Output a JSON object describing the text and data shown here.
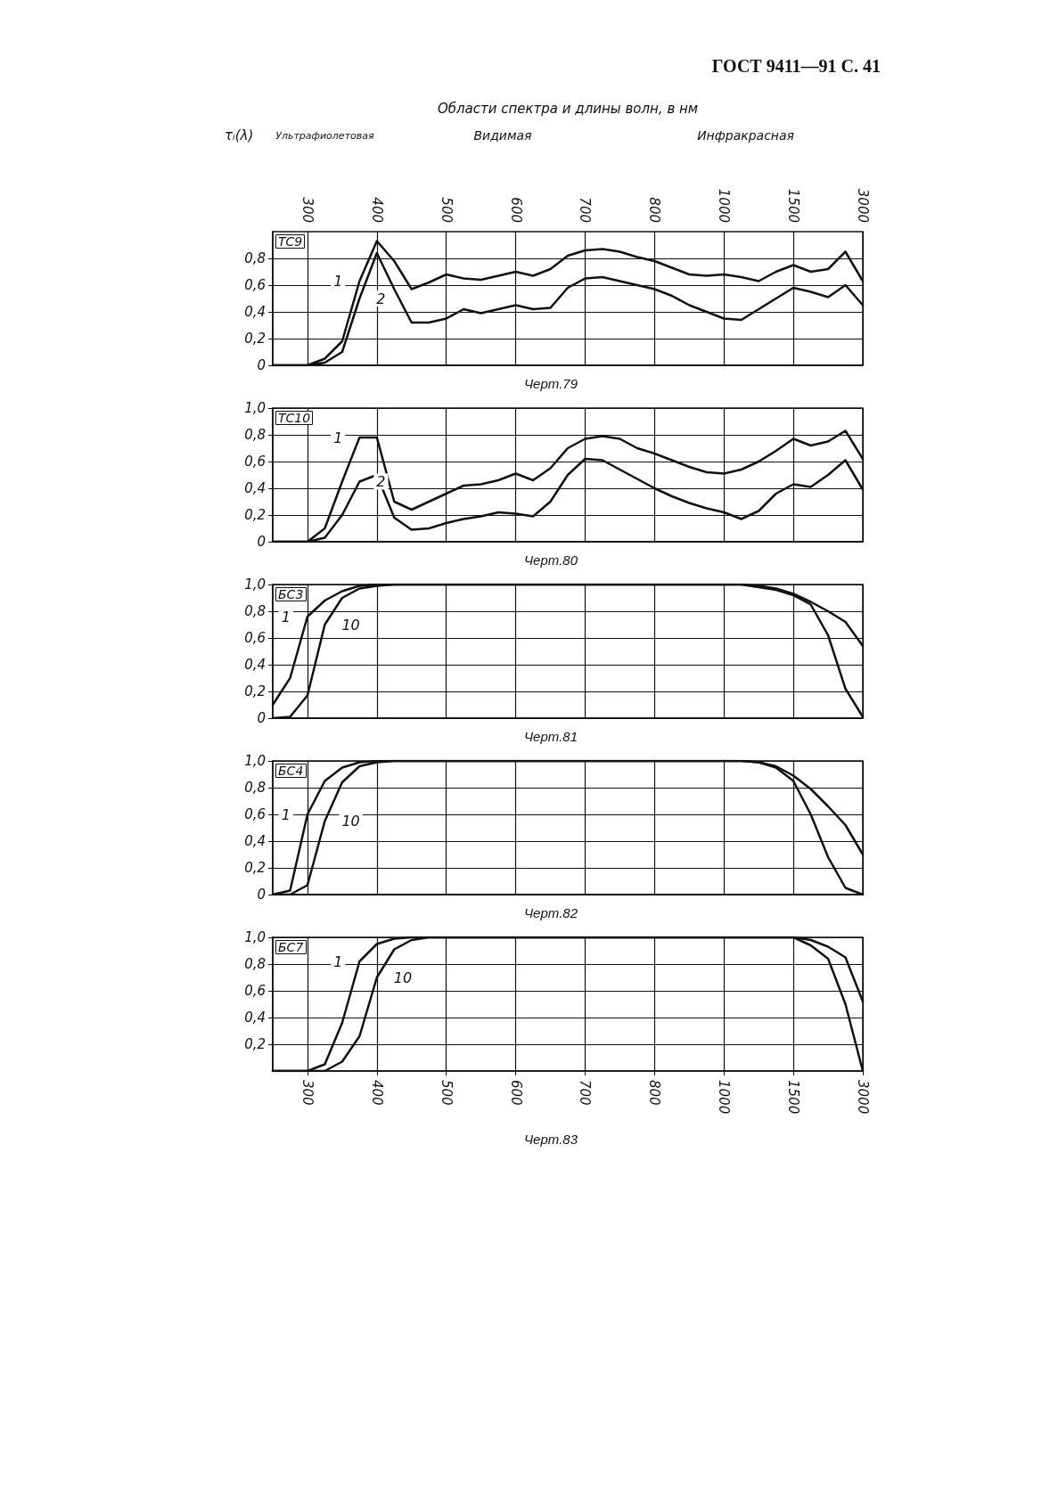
{
  "chart_data": [
    {
      "type": "line",
      "title": "ТС9",
      "ylabel": "τᵢ(λ)",
      "annotations": [
        "ГОСТ 9411—91 С. 41",
        "Области спектра и длины волн, в нм",
        "Ультрафиолетовая",
        "Видимая",
        "Инфракрасная",
        "Черт.79"
      ],
      "categories": [
        null,
        null,
        "300",
        null,
        null,
        null,
        "400",
        null,
        null,
        null,
        "500",
        null,
        null,
        null,
        "600",
        null,
        null,
        null,
        "700",
        null,
        null,
        null,
        "800",
        null,
        null,
        null,
        "1000",
        null,
        null,
        null,
        "1500",
        null,
        null,
        null,
        "3000"
      ],
      "series": [
        {
          "name": "1",
          "color": "#111111",
          "values": [
            0,
            0,
            0,
            0.05,
            0.18,
            0.63,
            0.93,
            0.78,
            0.57,
            0.62,
            0.68,
            0.65,
            0.64,
            0.67,
            0.7,
            0.67,
            0.72,
            0.82,
            0.86,
            0.87,
            0.85,
            0.81,
            0.78,
            0.73,
            0.68,
            0.67,
            0.68,
            0.66,
            0.63,
            0.7,
            0.75,
            0.7,
            0.72,
            0.85,
            0.63
          ]
        },
        {
          "name": "2",
          "color": "#111111",
          "values": [
            0,
            0,
            0,
            0.02,
            0.1,
            0.5,
            0.84,
            0.57,
            0.32,
            0.32,
            0.35,
            0.42,
            0.39,
            0.42,
            0.45,
            0.42,
            0.43,
            0.58,
            0.65,
            0.66,
            0.63,
            0.6,
            0.57,
            0.52,
            0.45,
            0.4,
            0.35,
            0.34,
            0.42,
            0.5,
            0.58,
            0.55,
            0.51,
            0.6,
            0.45
          ]
        }
      ],
      "ylim": [
        0,
        1
      ],
      "yticks": [
        {
          "value": 0,
          "label": "0"
        },
        {
          "value": 0.2,
          "label": "0,2"
        },
        {
          "value": 0.4,
          "label": "0,4"
        },
        {
          "value": 0.6,
          "label": "0,6"
        },
        {
          "value": 0.8,
          "label": "0,8"
        }
      ],
      "grid": true,
      "marker": "none",
      "line_style": "solid"
    },
    {
      "type": "line",
      "title": "ТС10",
      "annotations": [
        "Черт.80"
      ],
      "tick_labels": "y",
      "categories": [
        null,
        null,
        "300",
        null,
        null,
        null,
        "400",
        null,
        null,
        null,
        "500",
        null,
        null,
        null,
        "600",
        null,
        null,
        null,
        "700",
        null,
        null,
        null,
        "800",
        null,
        null,
        null,
        "1000",
        null,
        null,
        null,
        "1500",
        null,
        null,
        null,
        "3000"
      ],
      "series": [
        {
          "name": "1",
          "color": "#111111",
          "values": [
            0,
            0,
            0,
            0.1,
            0.45,
            0.78,
            0.78,
            0.3,
            0.24,
            0.3,
            0.36,
            0.42,
            0.43,
            0.46,
            0.51,
            0.46,
            0.55,
            0.7,
            0.77,
            0.79,
            0.77,
            0.7,
            0.66,
            0.61,
            0.56,
            0.52,
            0.51,
            0.54,
            0.6,
            0.68,
            0.77,
            0.72,
            0.75,
            0.83,
            0.62
          ]
        },
        {
          "name": "2",
          "color": "#111111",
          "values": [
            0,
            0,
            0,
            0.03,
            0.2,
            0.45,
            0.5,
            0.18,
            0.09,
            0.1,
            0.14,
            0.17,
            0.19,
            0.22,
            0.21,
            0.19,
            0.3,
            0.5,
            0.62,
            0.61,
            0.54,
            0.47,
            0.4,
            0.34,
            0.29,
            0.25,
            0.22,
            0.17,
            0.23,
            0.36,
            0.43,
            0.41,
            0.5,
            0.61,
            0.39
          ]
        }
      ],
      "ylim": [
        0,
        1
      ],
      "yticks": [
        {
          "value": 0,
          "label": "0"
        },
        {
          "value": 0.2,
          "label": "0,2"
        },
        {
          "value": 0.4,
          "label": "0,4"
        },
        {
          "value": 0.6,
          "label": "0,6"
        },
        {
          "value": 0.8,
          "label": "0,8"
        },
        {
          "value": 1,
          "label": "1,0"
        }
      ],
      "grid": true,
      "marker": "none",
      "line_style": "solid"
    },
    {
      "type": "line",
      "title": "БС3",
      "annotations": [
        "Черт.81"
      ],
      "tick_labels": "y",
      "categories": [
        null,
        null,
        "300",
        null,
        null,
        null,
        "400",
        null,
        null,
        null,
        "500",
        null,
        null,
        null,
        "600",
        null,
        null,
        null,
        "700",
        null,
        null,
        null,
        "800",
        null,
        null,
        null,
        "1000",
        null,
        null,
        null,
        "1500",
        null,
        null,
        null,
        "3000"
      ],
      "series": [
        {
          "name": "1",
          "color": "#111111",
          "values": [
            0.1,
            0.3,
            0.76,
            0.88,
            0.95,
            0.99,
            1,
            1,
            1,
            1,
            1,
            1,
            1,
            1,
            1,
            1,
            1,
            1,
            1,
            1,
            1,
            1,
            1,
            1,
            1,
            1,
            1,
            1,
            0.99,
            0.97,
            0.93,
            0.87,
            0.8,
            0.72,
            0.54
          ]
        },
        {
          "name": "10",
          "color": "#111111",
          "values": [
            0,
            0.01,
            0.17,
            0.7,
            0.9,
            0.97,
            0.99,
            1,
            1,
            1,
            1,
            1,
            1,
            1,
            1,
            1,
            1,
            1,
            1,
            1,
            1,
            1,
            1,
            1,
            1,
            1,
            1,
            1,
            0.98,
            0.96,
            0.92,
            0.85,
            0.62,
            0.22,
            0.01
          ]
        }
      ],
      "ylim": [
        0,
        1
      ],
      "yticks": [
        {
          "value": 0,
          "label": "0"
        },
        {
          "value": 0.2,
          "label": "0,2"
        },
        {
          "value": 0.4,
          "label": "0,4"
        },
        {
          "value": 0.6,
          "label": "0,6"
        },
        {
          "value": 0.8,
          "label": "0,8"
        },
        {
          "value": 1,
          "label": "1,0"
        }
      ],
      "grid": true,
      "marker": "none",
      "line_style": "solid"
    },
    {
      "type": "line",
      "title": "БС4",
      "annotations": [
        "Черт.82"
      ],
      "tick_labels": "y",
      "categories": [
        null,
        null,
        "300",
        null,
        null,
        null,
        "400",
        null,
        null,
        null,
        "500",
        null,
        null,
        null,
        "600",
        null,
        null,
        null,
        "700",
        null,
        null,
        null,
        "800",
        null,
        null,
        null,
        "1000",
        null,
        null,
        null,
        "1500",
        null,
        null,
        null,
        "3000"
      ],
      "series": [
        {
          "name": "1",
          "color": "#111111",
          "values": [
            0,
            0.03,
            0.6,
            0.85,
            0.95,
            0.99,
            1,
            1,
            1,
            1,
            1,
            1,
            1,
            1,
            1,
            1,
            1,
            1,
            1,
            1,
            1,
            1,
            1,
            1,
            1,
            1,
            1,
            1,
            0.99,
            0.96,
            0.89,
            0.79,
            0.66,
            0.52,
            0.3
          ]
        },
        {
          "name": "10",
          "color": "#111111",
          "values": [
            0,
            0,
            0.07,
            0.55,
            0.84,
            0.96,
            0.99,
            1,
            1,
            1,
            1,
            1,
            1,
            1,
            1,
            1,
            1,
            1,
            1,
            1,
            1,
            1,
            1,
            1,
            1,
            1,
            1,
            1,
            0.99,
            0.95,
            0.85,
            0.6,
            0.28,
            0.05,
            0
          ]
        }
      ],
      "ylim": [
        0,
        1
      ],
      "yticks": [
        {
          "value": 0,
          "label": "0"
        },
        {
          "value": 0.2,
          "label": "0,2"
        },
        {
          "value": 0.4,
          "label": "0,4"
        },
        {
          "value": 0.6,
          "label": "0,6"
        },
        {
          "value": 0.8,
          "label": "0,8"
        },
        {
          "value": 1,
          "label": "1,0"
        }
      ],
      "grid": true,
      "marker": "none",
      "line_style": "solid"
    },
    {
      "type": "line",
      "title": "БС7",
      "annotations": [
        "Черт.83"
      ],
      "categories": [
        null,
        null,
        "300",
        null,
        null,
        null,
        "400",
        null,
        null,
        null,
        "500",
        null,
        null,
        null,
        "600",
        null,
        null,
        null,
        "700",
        null,
        null,
        null,
        "800",
        null,
        null,
        null,
        "1000",
        null,
        null,
        null,
        "1500",
        null,
        null,
        null,
        "3000"
      ],
      "series": [
        {
          "name": "1",
          "color": "#111111",
          "values": [
            0,
            0,
            0,
            0.05,
            0.36,
            0.82,
            0.95,
            0.99,
            1,
            1,
            1,
            1,
            1,
            1,
            1,
            1,
            1,
            1,
            1,
            1,
            1,
            1,
            1,
            1,
            1,
            1,
            1,
            1,
            1,
            1,
            1,
            0.94,
            0.84,
            0.5,
            0
          ]
        },
        {
          "name": "10",
          "color": "#111111",
          "values": [
            0,
            0,
            0,
            0,
            0.07,
            0.26,
            0.7,
            0.91,
            0.98,
            1,
            1,
            1,
            1,
            1,
            1,
            1,
            1,
            1,
            1,
            1,
            1,
            1,
            1,
            1,
            1,
            1,
            1,
            1,
            1,
            1,
            1,
            0.98,
            0.93,
            0.85,
            0.52
          ]
        }
      ],
      "ylim": [
        0,
        1
      ],
      "yticks": [
        {
          "value": 0.2,
          "label": "0,2"
        },
        {
          "value": 0.4,
          "label": "0,4"
        },
        {
          "value": 0.6,
          "label": "0,6"
        },
        {
          "value": 0.8,
          "label": "0,8"
        },
        {
          "value": 1,
          "label": "1,0"
        }
      ],
      "grid": true,
      "marker": "none",
      "line_style": "solid"
    }
  ]
}
